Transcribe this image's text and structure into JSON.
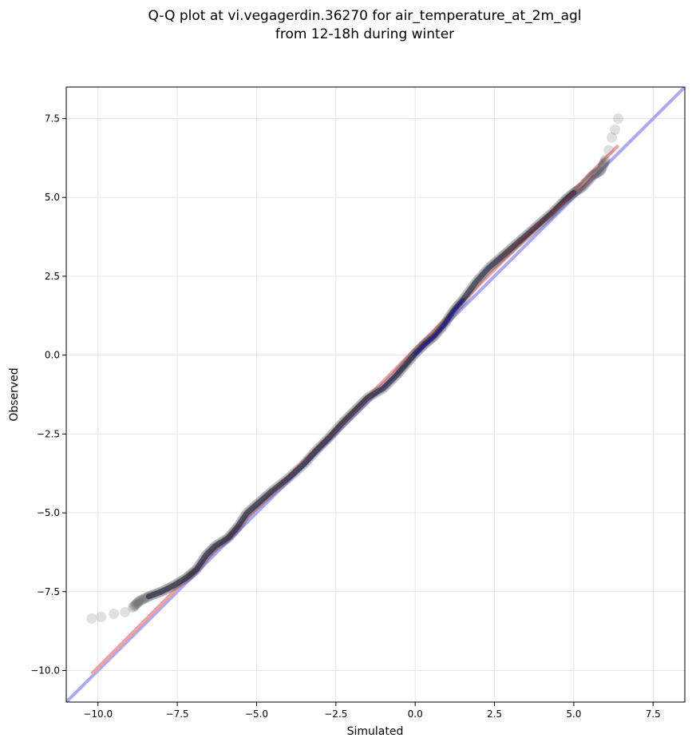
{
  "chart_data": {
    "type": "scatter",
    "title": "Q-Q plot at vi.vegagerdin.36270 for air_temperature_at_2m_agl",
    "subtitle": "from 12-18h during winter",
    "xlabel": "Simulated",
    "ylabel": "Observed",
    "xlim": [
      -11.0,
      8.5
    ],
    "ylim": [
      -11.0,
      8.5
    ],
    "xticks": [
      -10.0,
      -7.5,
      -5.0,
      -2.5,
      0.0,
      2.5,
      5.0,
      7.5
    ],
    "yticks": [
      -10.0,
      -7.5,
      -5.0,
      -2.5,
      0.0,
      2.5,
      5.0,
      7.5
    ],
    "xtick_labels": [
      "−10.0",
      "−7.5",
      "−5.0",
      "−2.5",
      "0.0",
      "2.5",
      "5.0",
      "7.5"
    ],
    "ytick_labels": [
      "−10.0",
      "−7.5",
      "−5.0",
      "−2.5",
      "0.0",
      "2.5",
      "5.0",
      "7.5"
    ],
    "grid": true,
    "colors": {
      "points": "#555555",
      "identity_line": "#a9a9f5",
      "fit_line": "#f5a0a0",
      "dense_inner_blue": "#1a1aa0",
      "dense_inner_red": "#b02020"
    },
    "identity_line": {
      "x": [
        -11.0,
        8.5
      ],
      "y": [
        -11.0,
        8.5
      ]
    },
    "fit_line": {
      "x": [
        -10.2,
        6.4
      ],
      "y": [
        -10.1,
        6.65
      ]
    },
    "quantile_curve": [
      [
        -10.2,
        -8.35
      ],
      [
        -9.9,
        -8.3
      ],
      [
        -9.5,
        -8.2
      ],
      [
        -9.15,
        -8.15
      ],
      [
        -8.9,
        -8.0
      ],
      [
        -8.7,
        -7.8
      ],
      [
        -8.4,
        -7.65
      ],
      [
        -8.0,
        -7.5
      ],
      [
        -7.6,
        -7.3
      ],
      [
        -7.2,
        -7.05
      ],
      [
        -6.9,
        -6.8
      ],
      [
        -6.6,
        -6.35
      ],
      [
        -6.3,
        -6.05
      ],
      [
        -5.9,
        -5.8
      ],
      [
        -5.6,
        -5.45
      ],
      [
        -5.3,
        -5.0
      ],
      [
        -4.9,
        -4.65
      ],
      [
        -4.5,
        -4.3
      ],
      [
        -4.0,
        -3.9
      ],
      [
        -3.5,
        -3.45
      ],
      [
        -3.1,
        -3.0
      ],
      [
        -2.7,
        -2.6
      ],
      [
        -2.3,
        -2.15
      ],
      [
        -1.9,
        -1.75
      ],
      [
        -1.5,
        -1.35
      ],
      [
        -1.0,
        -1.05
      ],
      [
        -0.6,
        -0.65
      ],
      [
        -0.3,
        -0.3
      ],
      [
        0.0,
        0.05
      ],
      [
        0.3,
        0.35
      ],
      [
        0.6,
        0.6
      ],
      [
        0.9,
        0.95
      ],
      [
        1.2,
        1.4
      ],
      [
        1.5,
        1.75
      ],
      [
        1.9,
        2.3
      ],
      [
        2.3,
        2.75
      ],
      [
        2.7,
        3.1
      ],
      [
        3.1,
        3.45
      ],
      [
        3.5,
        3.8
      ],
      [
        3.9,
        4.15
      ],
      [
        4.3,
        4.5
      ],
      [
        4.7,
        4.9
      ],
      [
        5.0,
        5.15
      ],
      [
        5.3,
        5.35
      ],
      [
        5.6,
        5.7
      ],
      [
        5.85,
        5.85
      ],
      [
        6.0,
        6.2
      ],
      [
        6.1,
        6.5
      ],
      [
        6.2,
        6.9
      ],
      [
        6.3,
        7.15
      ],
      [
        6.4,
        7.5
      ]
    ]
  }
}
